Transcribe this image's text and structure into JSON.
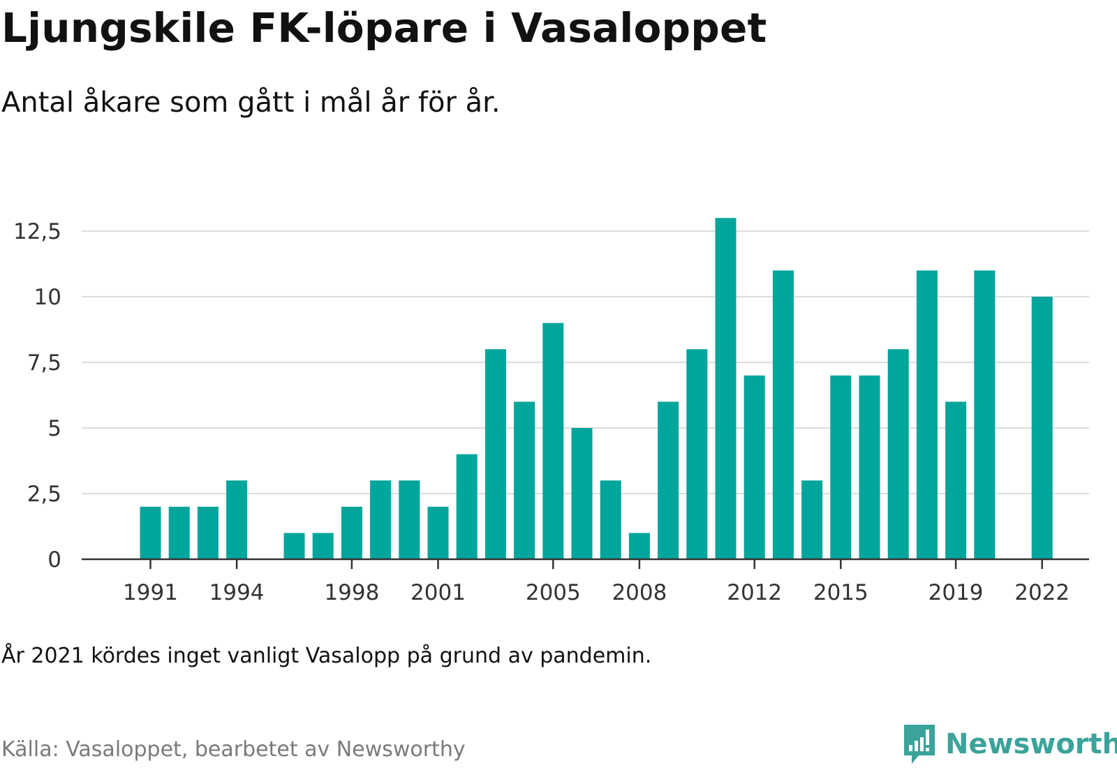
{
  "title": "Ljungskile FK-löpare i Vasaloppet",
  "subtitle": "Antal åkare som gått i mål år för år.",
  "note": "År 2021 kördes inget vanligt Vasalopp på grund av pandemin.",
  "source": "Källa: Vasaloppet, bearbetet av Newsworthy",
  "brand": {
    "name": "Newsworthy",
    "color": "#3aa39a"
  },
  "chart_data": {
    "type": "bar",
    "title": "Ljungskile FK-löpare i Vasaloppet",
    "subtitle": "Antal åkare som gått i mål år för år.",
    "xlabel": "",
    "ylabel": "",
    "bar_color": "#00a59b",
    "grid": true,
    "ylim": [
      0,
      13
    ],
    "y_ticks": [
      0,
      2.5,
      5,
      7.5,
      10,
      12.5
    ],
    "y_tick_labels": [
      "0",
      "2,5",
      "5",
      "7,5",
      "10",
      "12,5"
    ],
    "x_tick_labels": [
      "1991",
      "1994",
      "1998",
      "2001",
      "2005",
      "2008",
      "2012",
      "2015",
      "2019",
      "2022"
    ],
    "categories": [
      1991,
      1992,
      1993,
      1994,
      1995,
      1996,
      1997,
      1998,
      1999,
      2000,
      2001,
      2002,
      2003,
      2004,
      2005,
      2006,
      2007,
      2008,
      2009,
      2010,
      2011,
      2012,
      2013,
      2014,
      2015,
      2016,
      2017,
      2018,
      2019,
      2020,
      2021,
      2022
    ],
    "values": [
      2,
      2,
      2,
      3,
      0,
      1,
      1,
      2,
      3,
      3,
      2,
      4,
      8,
      6,
      9,
      5,
      3,
      1,
      6,
      8,
      13,
      7,
      11,
      3,
      7,
      7,
      8,
      11,
      6,
      11,
      0,
      10
    ]
  }
}
